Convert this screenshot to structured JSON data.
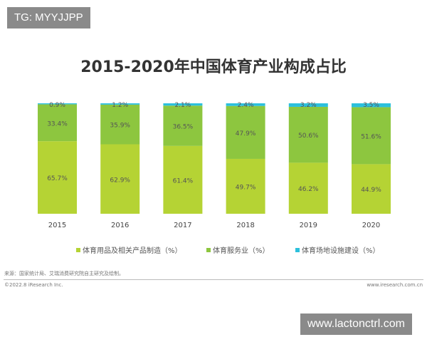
{
  "watermark_top": "TG: MYYJJPP",
  "watermark_bottom": "www.lactonctrl.com",
  "source": "来源：国家统计局、艾瑞消费研究院自主研究及绘制。",
  "copyright": "©2022.8 iResearch Inc.",
  "website": "www.iresearch.com.cn",
  "chart_data": {
    "type": "bar",
    "stacked": true,
    "title": "2015-2020年中国体育产业构成占比",
    "categories": [
      "2015",
      "2016",
      "2017",
      "2018",
      "2019",
      "2020"
    ],
    "ylim": [
      0,
      100
    ],
    "grid": false,
    "legend_position": "bottom",
    "series": [
      {
        "name": "体育用品及相关产品制造（%）",
        "color": "#b5d334",
        "values": [
          65.7,
          62.9,
          61.4,
          49.7,
          46.2,
          44.9
        ]
      },
      {
        "name": "体育服务业（%）",
        "color": "#8dc63f",
        "values": [
          33.4,
          35.9,
          36.5,
          47.9,
          50.6,
          51.6
        ]
      },
      {
        "name": "体育场地设施建设（%）",
        "color": "#2cc0dc",
        "values": [
          0.9,
          1.2,
          2.1,
          2.4,
          3.2,
          3.5
        ]
      }
    ]
  }
}
